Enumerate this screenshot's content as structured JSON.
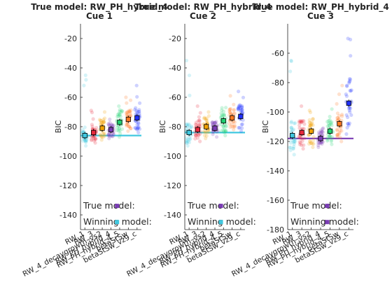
{
  "chart_data": [
    {
      "type": "scatter",
      "title": "True model: RW_PH_hybrid_4",
      "subtitle": "Cue 1",
      "ylabel": "BIC",
      "ylim": [
        -150,
        -10
      ],
      "yticks": [
        -140,
        -120,
        -100,
        -80,
        -60,
        -40,
        -20
      ],
      "categories": [
        "RW_1",
        "RW_3",
        "RW_4_decaygrowth_vs2",
        "RW_PH_hybrid_4",
        "RW_PH_hybrid_4_5",
        "betaStSw",
        "betaStSw_vz9_c"
      ],
      "xtick_labels": [
        "RW_1",
        "RW_3",
        "RW_4_decaygrowth_vs2",
        "RW_PH_hybrid_4",
        "RW_PH_hybrid_4_5",
        "betaStSw",
        "betaStSw_vz9_c"
      ],
      "colors": [
        "#40c8e0",
        "#e8283c",
        "#f0a000",
        "#7a3cb4",
        "#20d070",
        "#ff7820",
        "#2030ff"
      ],
      "means": [
        -86,
        -84,
        -81,
        -82,
        -77,
        -75,
        -74
      ],
      "spread": [
        [
          -93,
          -45
        ],
        [
          -91,
          -69
        ],
        [
          -89,
          -70
        ],
        [
          -88,
          -75
        ],
        [
          -87,
          -66
        ],
        [
          -83,
          -60
        ],
        [
          -84,
          -52
        ]
      ],
      "true_line": -86,
      "true_model_index": 3,
      "winning_model_index": 0,
      "annotation_true": "True model:",
      "annotation_winning": "Winning model:"
    },
    {
      "type": "scatter",
      "title": "True model: RW_PH_hybrid_4",
      "subtitle": "Cue 2",
      "ylabel": "BIC",
      "ylim": [
        -150,
        -10
      ],
      "yticks": [
        -140,
        -120,
        -100,
        -80,
        -60,
        -40,
        -20
      ],
      "categories": [
        "RW_1",
        "RW_3",
        "RW_4_decaygrowth_vs2",
        "RW_PH_hybrid_4",
        "RW_PH_hybrid_4_5",
        "betaStSw",
        "betaStSw_vz9_c"
      ],
      "xtick_labels": [
        "RW_1",
        "RW_3",
        "RW_4_decaygrowth_vs2",
        "RW_PH_hybrid_4",
        "RW_PH_hybrid_4_5",
        "betaStSw",
        "betaStSw_vz9_c"
      ],
      "colors": [
        "#40c8e0",
        "#e8283c",
        "#f0a000",
        "#7a3cb4",
        "#20d070",
        "#ff7820",
        "#2030ff"
      ],
      "means": [
        -84,
        -82,
        -80,
        -81,
        -76,
        -74,
        -73
      ],
      "spread": [
        [
          -93,
          -35
        ],
        [
          -90,
          -66
        ],
        [
          -88,
          -70
        ],
        [
          -87,
          -77
        ],
        [
          -86,
          -67
        ],
        [
          -82,
          -59
        ],
        [
          -83,
          -56
        ]
      ],
      "true_line": -84,
      "true_model_index": 3,
      "winning_model_index": 0,
      "annotation_true": "True model:",
      "annotation_winning": "Winning model:"
    },
    {
      "type": "scatter",
      "title": "True model: RW_PH_hybrid_4",
      "subtitle": "Cue 3",
      "ylabel": "BIC",
      "ylim": [
        -180,
        -40
      ],
      "yticks": [
        -180,
        -160,
        -140,
        -120,
        -100,
        -80,
        -60
      ],
      "categories": [
        "RW_1",
        "RW_3",
        "RW_4_decaygrowth_vs2",
        "RW_PH_hybrid_4",
        "RW_PH_hybrid_4_5",
        "betaStSw",
        "betaStSw_vz9_c"
      ],
      "xtick_labels": [
        "RW_1",
        "RW_3",
        "RW_4_decaygrowth_vs2",
        "RW_PH_hybrid_4",
        "RW_PH_hybrid_4_5",
        "betaStSw",
        "betaStSw_vz9_c"
      ],
      "colors": [
        "#40c8e0",
        "#e8283c",
        "#f0a000",
        "#7a3cb4",
        "#20d070",
        "#ff7820",
        "#2030ff"
      ],
      "means": [
        -116,
        -114,
        -113,
        -118,
        -113,
        -108,
        -94
      ],
      "spread": [
        [
          -129,
          -65
        ],
        [
          -125,
          -96
        ],
        [
          -124,
          -99
        ],
        [
          -124,
          -111
        ],
        [
          -122,
          -98
        ],
        [
          -120,
          -82
        ],
        [
          -115,
          -50
        ]
      ],
      "true_line": -118,
      "true_model_index": 3,
      "winning_model_index": 3,
      "annotation_true": "True model:",
      "annotation_winning": "Winning model:"
    }
  ]
}
